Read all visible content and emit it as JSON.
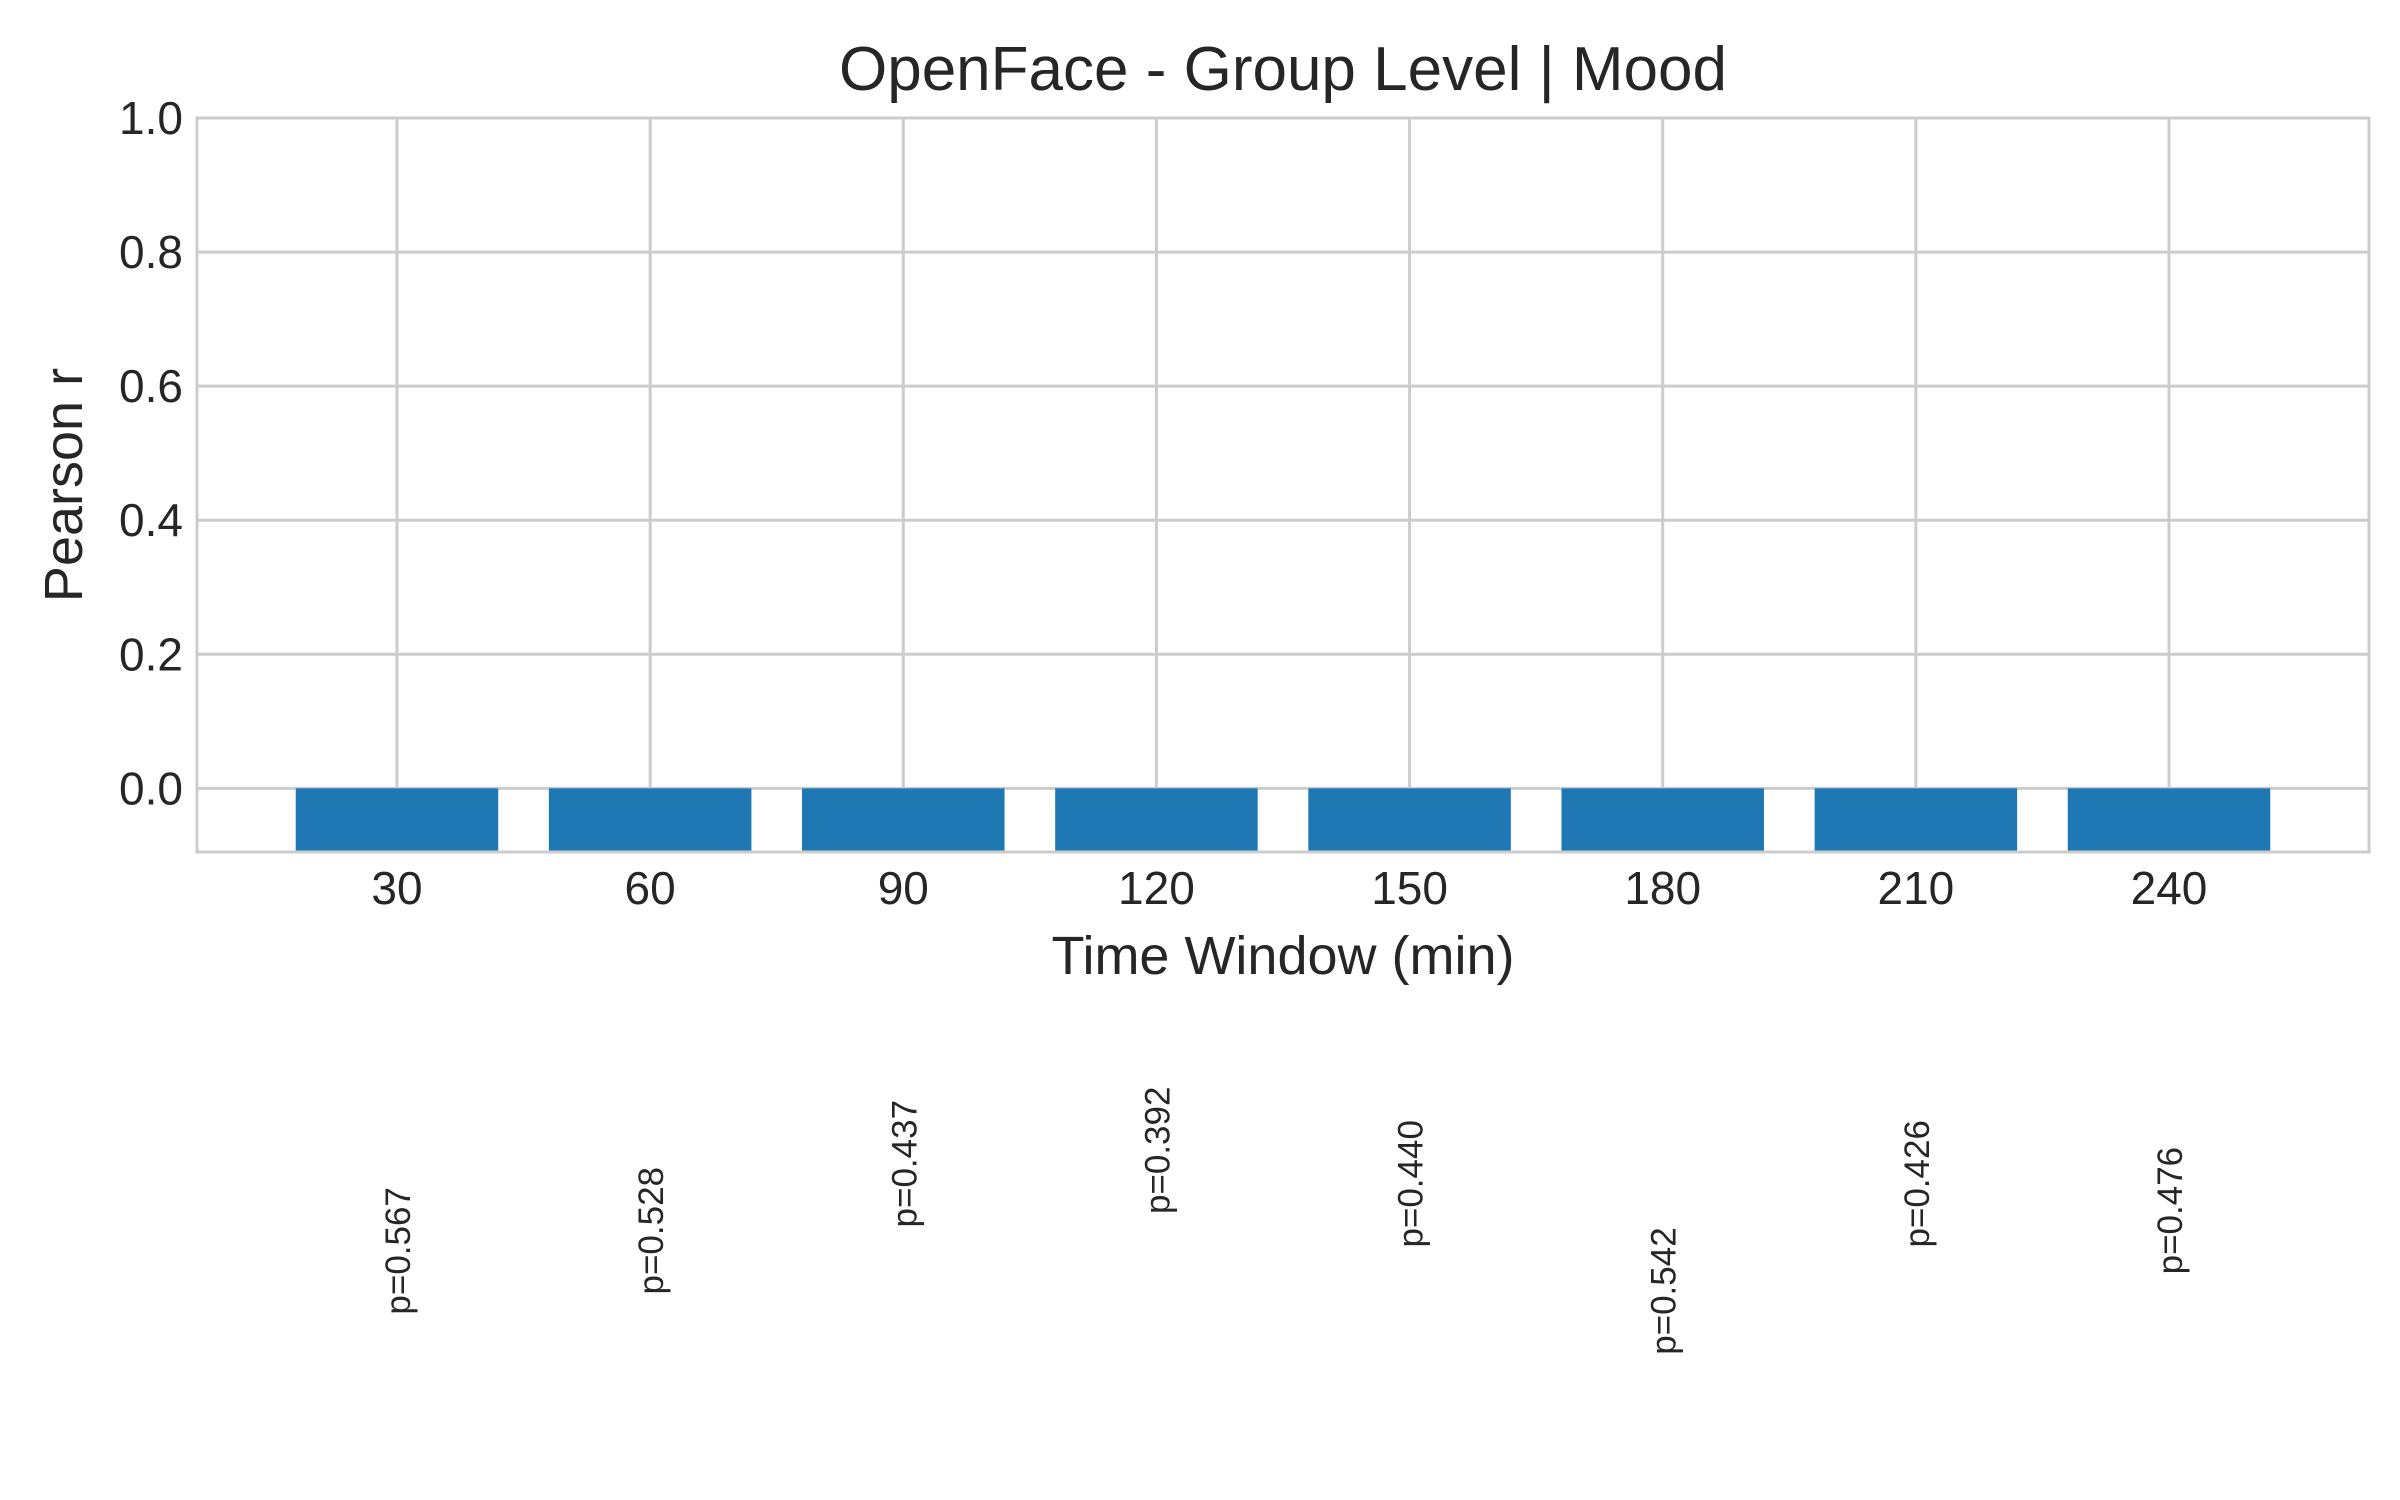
{
  "chart_data": {
    "type": "bar",
    "title": "OpenFace - Group Level | Mood",
    "xlabel": "Time Window (min)",
    "ylabel": "Pearson r",
    "categories": [
      "30",
      "60",
      "90",
      "120",
      "150",
      "180",
      "210",
      "240"
    ],
    "values": [
      -0.095,
      -0.095,
      -0.095,
      -0.095,
      -0.095,
      -0.095,
      -0.095,
      -0.095
    ],
    "annotations": [
      "p=0.567",
      "p=0.528",
      "p=0.437",
      "p=0.392",
      "p=0.440",
      "p=0.542",
      "p=0.426",
      "p=0.476"
    ],
    "annotation_y": [
      -0.69,
      -0.66,
      -0.56,
      -0.54,
      -0.59,
      -0.75,
      -0.59,
      -0.63
    ],
    "ylim": [
      -0.095,
      1.0
    ],
    "yticks": [
      "0.0",
      "0.2",
      "0.4",
      "0.6",
      "0.8",
      "1.0"
    ],
    "grid": true,
    "bar_color": "#1f77b4"
  }
}
